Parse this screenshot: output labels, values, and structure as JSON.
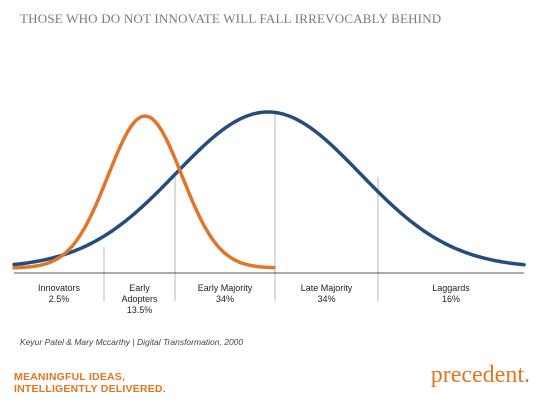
{
  "slide": {
    "title": "THOSE WHO DO NOT INNOVATE WILL FALL IRREVOCABLY BEHIND"
  },
  "diagram": {
    "curves": [
      {
        "name": "orange curve",
        "color": "#e0752b"
      },
      {
        "name": "blue curve",
        "color": "#254c7e"
      }
    ],
    "segments": [
      {
        "label_lines": [
          "Innovators",
          "2.5%"
        ]
      },
      {
        "label_lines": [
          "Early",
          "Adopters",
          "13.5%"
        ]
      },
      {
        "label_lines": [
          "Early Majority",
          "34%"
        ]
      },
      {
        "label_lines": [
          "Late Majority",
          "34%"
        ]
      },
      {
        "label_lines": [
          "Laggards",
          "16%"
        ]
      }
    ],
    "axis_color": "#555555",
    "divider_color": "#b8b8b8"
  },
  "citation": "Keyur Patel & Mary Mccarthy | Digital Transformation, 2000",
  "footer": {
    "tagline_lines": [
      "MEANINGFUL IDEAS,",
      "INTELLIGENTLY DELIVERED."
    ],
    "brand": "precedent.",
    "accent_color": "#e3751f"
  }
}
